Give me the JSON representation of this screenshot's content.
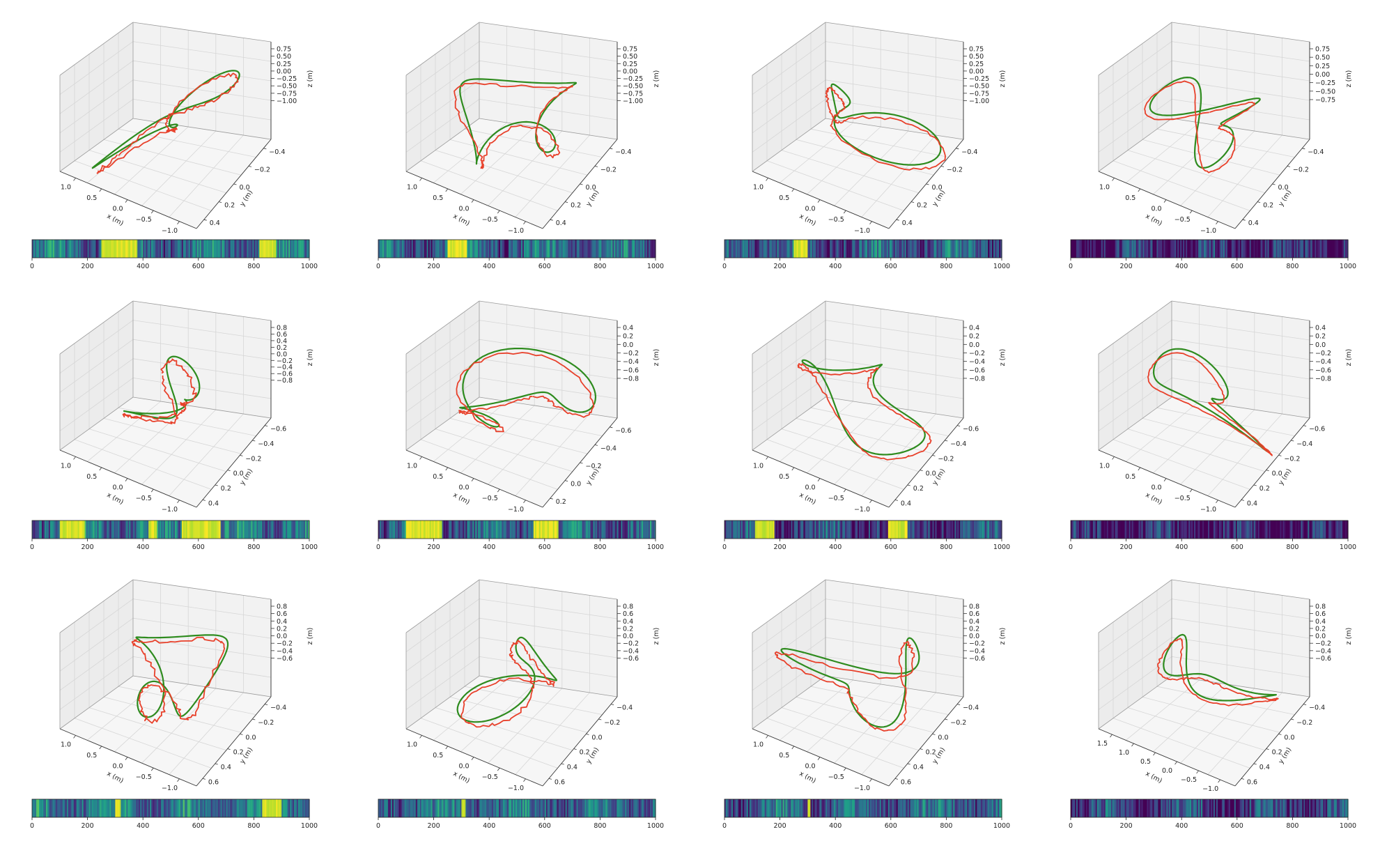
{
  "figure": {
    "axis_labels": {
      "x": "x (m)",
      "y": "y (m)",
      "z": "z (m)"
    },
    "colors": {
      "estimate": "#e8402a",
      "ground_truth": "#2e8b1e",
      "colormap": "viridis"
    }
  },
  "chart_data": [
    {
      "type": "line",
      "row": 0,
      "col": 0,
      "xticks": [
        "1.0",
        "0.5",
        "0.0",
        "−0.5",
        "−1.0"
      ],
      "yticks": [
        "−0.4",
        "−0.2",
        "0.0",
        "0.2",
        "0.4"
      ],
      "zticks": [
        "0.75",
        "0.50",
        "0.25",
        "0.00",
        "−0.25",
        "−0.50",
        "−0.75",
        "−1.00"
      ],
      "bar": {
        "xlim": [
          0,
          1000
        ],
        "ticks": [
          "0",
          "200",
          "400",
          "600",
          "800",
          "1000"
        ],
        "bright_intervals": [
          [
            250,
            380
          ],
          [
            820,
            880
          ]
        ],
        "base_level": 0.35
      }
    },
    {
      "type": "line",
      "row": 0,
      "col": 1,
      "xticks": [
        "1.0",
        "0.5",
        "0.0",
        "−0.5",
        "−1.0"
      ],
      "yticks": [
        "−0.4",
        "−0.2",
        "0.0",
        "0.2",
        "0.4"
      ],
      "zticks": [
        "0.75",
        "0.50",
        "0.25",
        "0.00",
        "−0.25",
        "−0.50",
        "−0.75",
        "−1.00"
      ],
      "bar": {
        "xlim": [
          0,
          1000
        ],
        "ticks": [
          "0",
          "200",
          "400",
          "600",
          "800",
          "1000"
        ],
        "bright_intervals": [
          [
            250,
            320
          ]
        ],
        "base_level": 0.32
      }
    },
    {
      "type": "line",
      "row": 0,
      "col": 2,
      "xticks": [
        "1.0",
        "0.5",
        "0.0",
        "−0.5",
        "−1.0"
      ],
      "yticks": [
        "−0.4",
        "−0.2",
        "0.0",
        "0.2",
        "0.4"
      ],
      "zticks": [
        "0.75",
        "0.50",
        "0.25",
        "0.00",
        "−0.25",
        "−0.50",
        "−0.75",
        "−1.00"
      ],
      "bar": {
        "xlim": [
          0,
          1000
        ],
        "ticks": [
          "0",
          "200",
          "400",
          "600",
          "800",
          "1000"
        ],
        "bright_intervals": [
          [
            250,
            300
          ]
        ],
        "base_level": 0.3
      }
    },
    {
      "type": "line",
      "row": 0,
      "col": 3,
      "xticks": [
        "1.0",
        "0.5",
        "0.0",
        "−0.5",
        "−1.0"
      ],
      "yticks": [
        "−0.4",
        "−0.2",
        "0.0",
        "0.2",
        "0.4"
      ],
      "zticks": [
        "0.75",
        "0.50",
        "0.25",
        "0.00",
        "−0.25",
        "−0.50",
        "−0.75"
      ],
      "bar": {
        "xlim": [
          0,
          1000
        ],
        "ticks": [
          "0",
          "200",
          "400",
          "600",
          "800",
          "1000"
        ],
        "bright_intervals": [],
        "base_level": 0.12
      }
    },
    {
      "type": "line",
      "row": 1,
      "col": 0,
      "xticks": [
        "1.0",
        "0.5",
        "0.0",
        "−0.5",
        "−1.0"
      ],
      "yticks": [
        "−0.6",
        "−0.4",
        "−0.2",
        "0.0",
        "0.2",
        "0.4"
      ],
      "zticks": [
        "0.8",
        "0.6",
        "0.4",
        "0.2",
        "0.0",
        "−0.2",
        "−0.4",
        "−0.6",
        "−0.8"
      ],
      "bar": {
        "xlim": [
          0,
          1000
        ],
        "ticks": [
          "0",
          "200",
          "400",
          "600",
          "800",
          "1000"
        ],
        "bright_intervals": [
          [
            100,
            190
          ],
          [
            420,
            450
          ],
          [
            540,
            680
          ]
        ],
        "base_level": 0.4
      }
    },
    {
      "type": "line",
      "row": 1,
      "col": 1,
      "xticks": [
        "1.0",
        "0.5",
        "0.0",
        "−0.5",
        "−1.0"
      ],
      "yticks": [
        "−0.6",
        "−0.4",
        "−0.2",
        "0.0",
        "0.2"
      ],
      "zticks": [
        "0.4",
        "0.2",
        "0.0",
        "−0.2",
        "−0.4",
        "−0.6",
        "−0.8"
      ],
      "bar": {
        "xlim": [
          0,
          1000
        ],
        "ticks": [
          "0",
          "200",
          "400",
          "600",
          "800",
          "1000"
        ],
        "bright_intervals": [
          [
            100,
            230
          ],
          [
            560,
            650
          ]
        ],
        "base_level": 0.32
      }
    },
    {
      "type": "line",
      "row": 1,
      "col": 2,
      "xticks": [
        "1.0",
        "0.5",
        "0.0",
        "−0.5",
        "−1.0"
      ],
      "yticks": [
        "−0.6",
        "−0.4",
        "−0.2",
        "0.0",
        "0.2",
        "0.4"
      ],
      "zticks": [
        "0.4",
        "0.2",
        "0.0",
        "−0.2",
        "−0.4",
        "−0.6",
        "−0.8"
      ],
      "bar": {
        "xlim": [
          0,
          1000
        ],
        "ticks": [
          "0",
          "200",
          "400",
          "600",
          "800",
          "1000"
        ],
        "bright_intervals": [
          [
            110,
            180
          ],
          [
            590,
            660
          ]
        ],
        "base_level": 0.22
      }
    },
    {
      "type": "line",
      "row": 1,
      "col": 3,
      "xticks": [
        "1.0",
        "0.5",
        "0.0",
        "−0.5",
        "−1.0"
      ],
      "yticks": [
        "−0.6",
        "−0.4",
        "−0.2",
        "0.0",
        "0.2",
        "0.4"
      ],
      "zticks": [
        "0.4",
        "0.2",
        "0.0",
        "−0.2",
        "−0.4",
        "−0.6",
        "−0.8"
      ],
      "bar": {
        "xlim": [
          0,
          1000
        ],
        "ticks": [
          "0",
          "200",
          "400",
          "600",
          "800",
          "1000"
        ],
        "bright_intervals": [],
        "base_level": 0.08
      }
    },
    {
      "type": "line",
      "row": 2,
      "col": 0,
      "xticks": [
        "1.0",
        "0.5",
        "0.0",
        "−0.5",
        "−1.0"
      ],
      "yticks": [
        "−0.4",
        "−0.2",
        "0.0",
        "0.2",
        "0.4",
        "0.6"
      ],
      "zticks": [
        "0.8",
        "0.6",
        "0.4",
        "0.2",
        "0.0",
        "−0.2",
        "−0.4",
        "−0.6"
      ],
      "bar": {
        "xlim": [
          0,
          1000
        ],
        "ticks": [
          "0",
          "200",
          "400",
          "600",
          "800",
          "1000"
        ],
        "bright_intervals": [
          [
            300,
            320
          ],
          [
            830,
            900
          ]
        ],
        "base_level": 0.42
      }
    },
    {
      "type": "line",
      "row": 2,
      "col": 1,
      "xticks": [
        "1.0",
        "0.5",
        "0.0",
        "−0.5",
        "−1.0"
      ],
      "yticks": [
        "−0.4",
        "−0.2",
        "0.0",
        "0.2",
        "0.4",
        "0.6"
      ],
      "zticks": [
        "0.8",
        "0.6",
        "0.4",
        "0.2",
        "0.0",
        "−0.2",
        "−0.4",
        "−0.6"
      ],
      "bar": {
        "xlim": [
          0,
          1000
        ],
        "ticks": [
          "0",
          "200",
          "400",
          "600",
          "800",
          "1000"
        ],
        "bright_intervals": [
          [
            300,
            315
          ]
        ],
        "base_level": 0.35
      }
    },
    {
      "type": "line",
      "row": 2,
      "col": 2,
      "xticks": [
        "1.0",
        "0.5",
        "0.0",
        "−0.5",
        "−1.0"
      ],
      "yticks": [
        "−0.4",
        "−0.2",
        "0.0",
        "0.2",
        "0.4",
        "0.6"
      ],
      "zticks": [
        "0.8",
        "0.6",
        "0.4",
        "0.2",
        "0.0",
        "−0.2",
        "−0.4",
        "−0.6"
      ],
      "bar": {
        "xlim": [
          0,
          1000
        ],
        "ticks": [
          "0",
          "200",
          "400",
          "600",
          "800",
          "1000"
        ],
        "bright_intervals": [
          [
            300,
            310
          ]
        ],
        "base_level": 0.32
      }
    },
    {
      "type": "line",
      "row": 2,
      "col": 3,
      "xticks": [
        "1.5",
        "1.0",
        "0.5",
        "0.0",
        "−0.5",
        "−1.0"
      ],
      "yticks": [
        "−0.4",
        "−0.2",
        "0.0",
        "0.2",
        "0.4",
        "0.6"
      ],
      "zticks": [
        "0.8",
        "0.6",
        "0.4",
        "0.2",
        "0.0",
        "−0.2",
        "−0.4",
        "−0.6"
      ],
      "bar": {
        "xlim": [
          0,
          1000
        ],
        "ticks": [
          "0",
          "200",
          "400",
          "600",
          "800",
          "1000"
        ],
        "bright_intervals": [],
        "base_level": 0.2
      }
    }
  ]
}
